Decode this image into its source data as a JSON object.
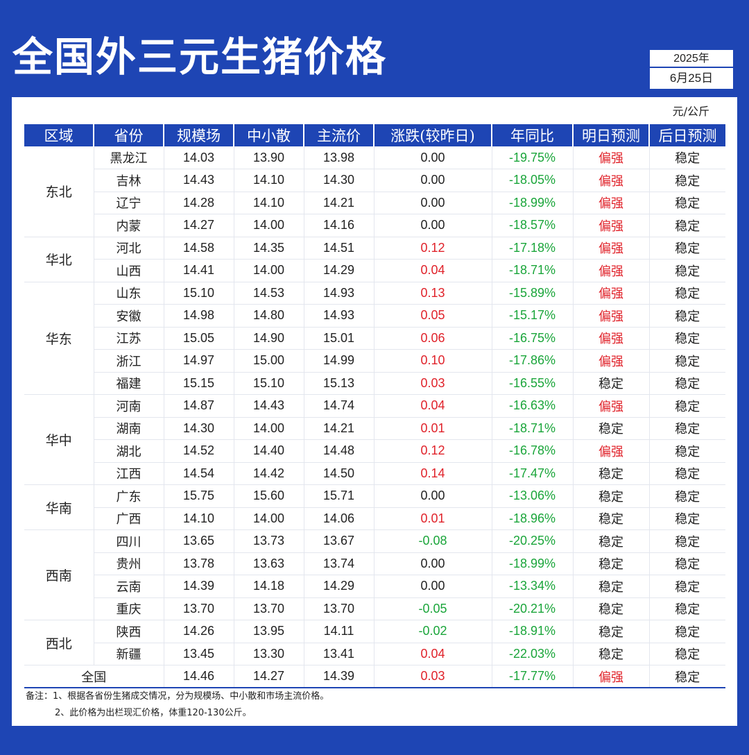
{
  "title": "全国外三元生猪价格",
  "date": {
    "year": "2025年",
    "day": "6月25日"
  },
  "unit": "元/公斤",
  "headers": [
    "区域",
    "省份",
    "规模场",
    "中小散",
    "主流价",
    "涨跌(较昨日)",
    "年同比",
    "明日预测",
    "后日预测"
  ],
  "groups": [
    {
      "region": "东北",
      "rows": [
        [
          "黑龙江",
          "14.03",
          "13.90",
          "13.98",
          "0.00",
          "-19.75%",
          "偏强",
          "稳定"
        ],
        [
          "吉林",
          "14.43",
          "14.10",
          "14.30",
          "0.00",
          "-18.05%",
          "偏强",
          "稳定"
        ],
        [
          "辽宁",
          "14.28",
          "14.10",
          "14.21",
          "0.00",
          "-18.99%",
          "偏强",
          "稳定"
        ],
        [
          "内蒙",
          "14.27",
          "14.00",
          "14.16",
          "0.00",
          "-18.57%",
          "偏强",
          "稳定"
        ]
      ]
    },
    {
      "region": "华北",
      "rows": [
        [
          "河北",
          "14.58",
          "14.35",
          "14.51",
          "0.12",
          "-17.18%",
          "偏强",
          "稳定"
        ],
        [
          "山西",
          "14.41",
          "14.00",
          "14.29",
          "0.04",
          "-18.71%",
          "偏强",
          "稳定"
        ]
      ]
    },
    {
      "region": "华东",
      "rows": [
        [
          "山东",
          "15.10",
          "14.53",
          "14.93",
          "0.13",
          "-15.89%",
          "偏强",
          "稳定"
        ],
        [
          "安徽",
          "14.98",
          "14.80",
          "14.93",
          "0.05",
          "-15.17%",
          "偏强",
          "稳定"
        ],
        [
          "江苏",
          "15.05",
          "14.90",
          "15.01",
          "0.06",
          "-16.75%",
          "偏强",
          "稳定"
        ],
        [
          "浙江",
          "14.97",
          "15.00",
          "14.99",
          "0.10",
          "-17.86%",
          "偏强",
          "稳定"
        ],
        [
          "福建",
          "15.15",
          "15.10",
          "15.13",
          "0.03",
          "-16.55%",
          "稳定",
          "稳定"
        ]
      ]
    },
    {
      "region": "华中",
      "rows": [
        [
          "河南",
          "14.87",
          "14.43",
          "14.74",
          "0.04",
          "-16.63%",
          "偏强",
          "稳定"
        ],
        [
          "湖南",
          "14.30",
          "14.00",
          "14.21",
          "0.01",
          "-18.71%",
          "稳定",
          "稳定"
        ],
        [
          "湖北",
          "14.52",
          "14.40",
          "14.48",
          "0.12",
          "-16.78%",
          "偏强",
          "稳定"
        ],
        [
          "江西",
          "14.54",
          "14.42",
          "14.50",
          "0.14",
          "-17.47%",
          "稳定",
          "稳定"
        ]
      ]
    },
    {
      "region": "华南",
      "rows": [
        [
          "广东",
          "15.75",
          "15.60",
          "15.71",
          "0.00",
          "-13.06%",
          "稳定",
          "稳定"
        ],
        [
          "广西",
          "14.10",
          "14.00",
          "14.06",
          "0.01",
          "-18.96%",
          "稳定",
          "稳定"
        ]
      ]
    },
    {
      "region": "西南",
      "rows": [
        [
          "四川",
          "13.65",
          "13.73",
          "13.67",
          "-0.08",
          "-20.25%",
          "稳定",
          "稳定"
        ],
        [
          "贵州",
          "13.78",
          "13.63",
          "13.74",
          "0.00",
          "-18.99%",
          "稳定",
          "稳定"
        ],
        [
          "云南",
          "14.39",
          "14.18",
          "14.29",
          "0.00",
          "-13.34%",
          "稳定",
          "稳定"
        ],
        [
          "重庆",
          "13.70",
          "13.70",
          "13.70",
          "-0.05",
          "-20.21%",
          "稳定",
          "稳定"
        ]
      ]
    },
    {
      "region": "西北",
      "rows": [
        [
          "陕西",
          "14.26",
          "13.95",
          "14.11",
          "-0.02",
          "-18.91%",
          "稳定",
          "稳定"
        ],
        [
          "新疆",
          "13.45",
          "13.30",
          "13.41",
          "0.04",
          "-22.03%",
          "稳定",
          "稳定"
        ]
      ]
    }
  ],
  "national": [
    "全国",
    "14.46",
    "14.27",
    "14.39",
    "0.03",
    "-17.77%",
    "偏强",
    "稳定"
  ],
  "notes": [
    "备注：1、根据各省份生猪成交情况，分为规模场、中小散和市场主流价格。",
    "2、此价格为出栏现汇价格，体重120-130公斤。"
  ],
  "colors": {
    "brand": "#1e45b4",
    "up": "#e0222a",
    "down": "#1aa53a",
    "strong": "#e0222a"
  }
}
